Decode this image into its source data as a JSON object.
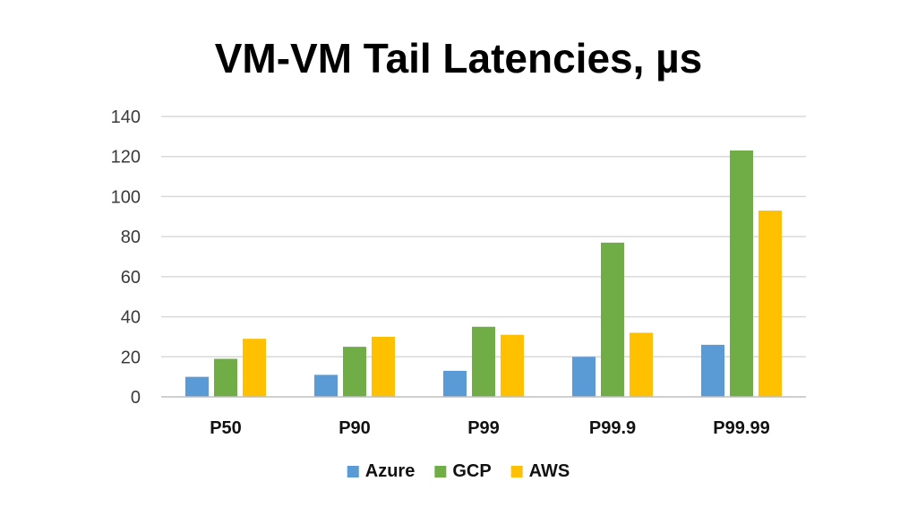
{
  "chart_data": {
    "type": "bar",
    "title": "VM-VM Tail Latencies, µs",
    "xlabel": "",
    "ylabel": "",
    "categories": [
      "P50",
      "P90",
      "P99",
      "P99.9",
      "P99.99"
    ],
    "series": [
      {
        "name": "Azure",
        "color": "#5b9bd5",
        "values": [
          10,
          11,
          13,
          20,
          26
        ]
      },
      {
        "name": "GCP",
        "color": "#70ad47",
        "values": [
          19,
          25,
          35,
          77,
          123
        ]
      },
      {
        "name": "AWS",
        "color": "#ffc000",
        "values": [
          29,
          30,
          31,
          32,
          93
        ]
      }
    ],
    "ylim": [
      0,
      140
    ],
    "yticks": [
      0,
      20,
      40,
      60,
      80,
      100,
      120,
      140
    ],
    "grid": true,
    "legend": "bottom"
  }
}
